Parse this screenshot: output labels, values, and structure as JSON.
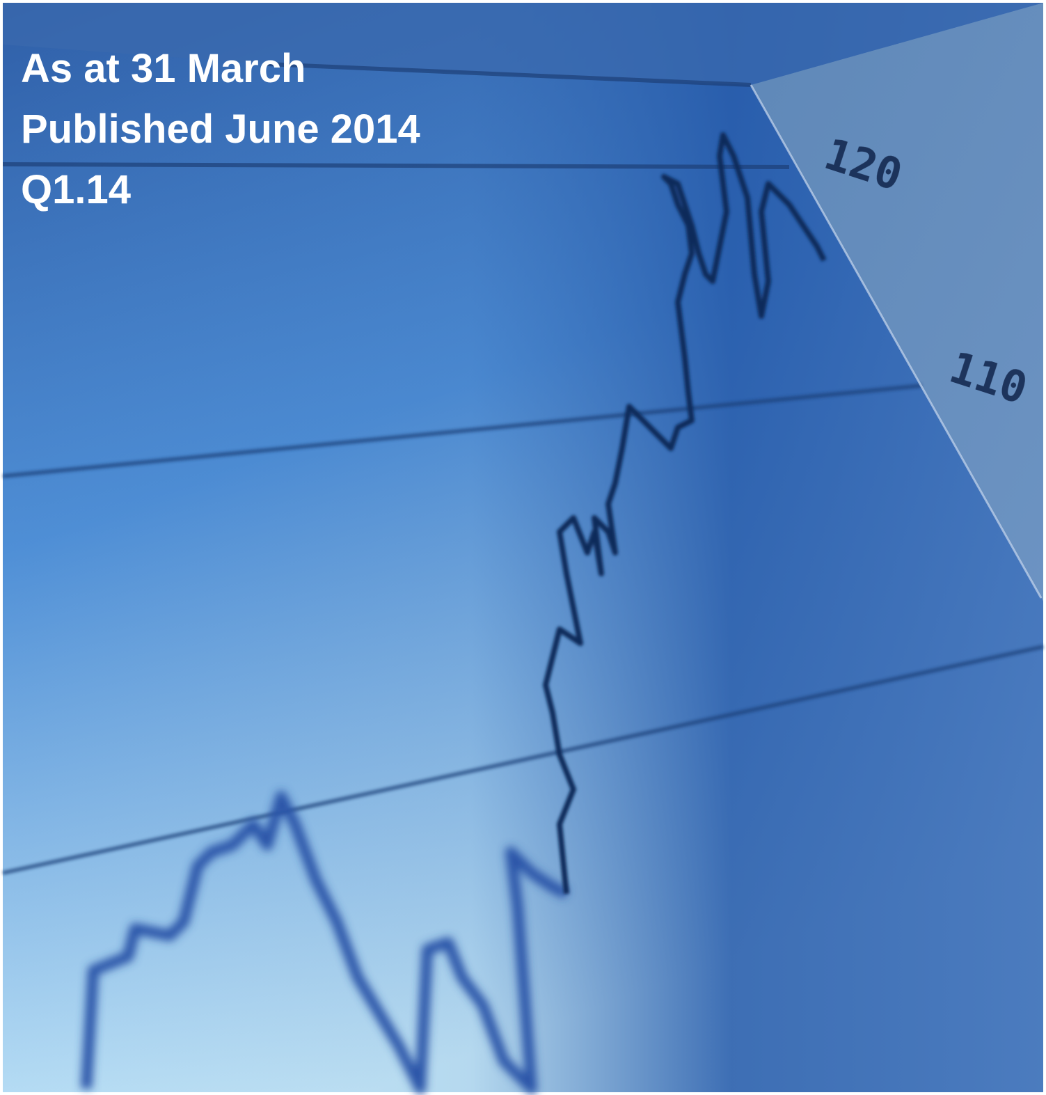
{
  "header": {
    "lines": [
      "As at 31 March",
      "Published June 2014",
      "Q1.14"
    ]
  },
  "photo": {
    "axis_labels": [
      "120",
      "110"
    ]
  }
}
